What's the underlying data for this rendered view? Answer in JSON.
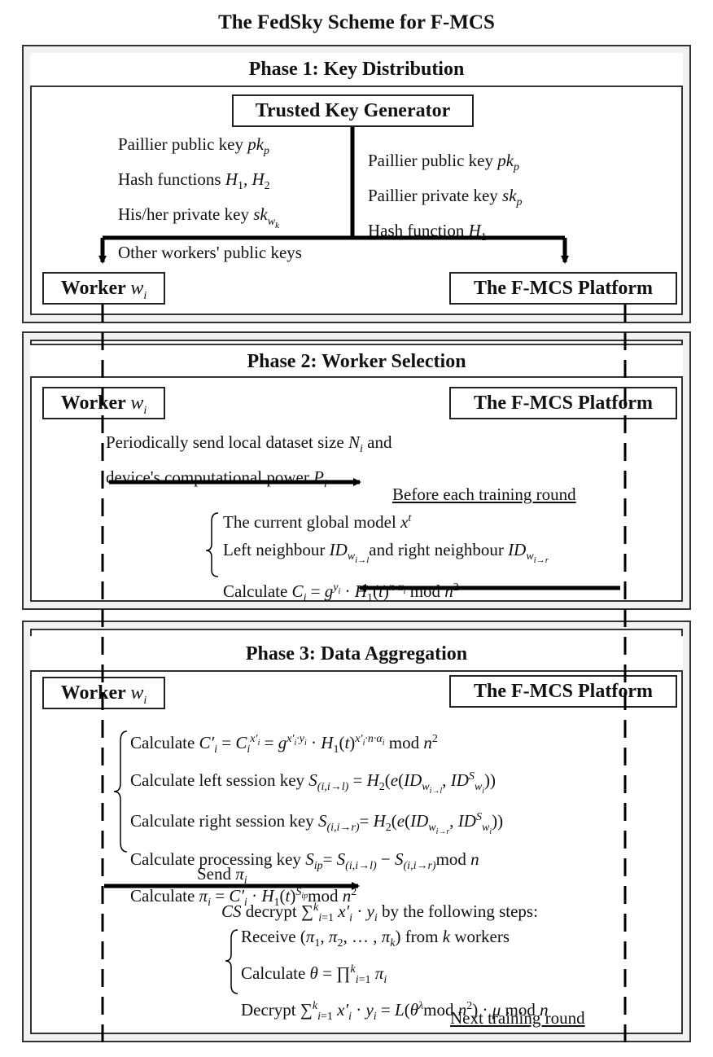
{
  "title": "The FedSky Scheme for F-MCS",
  "phase1": {
    "heading": "Phase 1: Key Distribution",
    "generator": "Trusted Key Generator",
    "worker_keys": {
      "line1": "Paillier public key ",
      "line2": "Hash functions ",
      "line3": "His/her private key ",
      "line4": "Other workers' public keys"
    },
    "platform_keys": {
      "line1": "Paillier public key ",
      "line2": "Paillier private key ",
      "line3": "Hash function "
    },
    "worker_label": "Worker ",
    "platform_label": "The F-MCS Platform"
  },
  "phase2": {
    "heading": "Phase 2: Worker Selection",
    "worker_label": "Worker ",
    "platform_label": "The F-MCS Platform",
    "send_line1": "Periodically send local dataset size ",
    "send_line1_tail": " and",
    "send_line2": "device's computational power ",
    "before_round": "Before each training round",
    "reply1": "The current global model ",
    "reply2a": "Left neighbour ",
    "reply2b": "and right neighbour ",
    "reply3": "Calculate "
  },
  "phase3": {
    "heading": "Phase 3: Data Aggregation",
    "worker_label": "Worker ",
    "platform_label": "The F-MCS Platform",
    "calc1": "Calculate ",
    "calc2": "Calculate left session key ",
    "calc3": "Calculate right session key ",
    "calc4": "Calculate processing key ",
    "calc5": "Calculate ",
    "send": "Send ",
    "cs_decrypt": " decrypt ",
    "cs_decrypt_tail": " by the following steps:",
    "step1a": "Receive ",
    "step1b": " from ",
    "step1c": " workers",
    "step2": "Calculate ",
    "step3": "Decrypt ",
    "next_round": "Next training round"
  }
}
